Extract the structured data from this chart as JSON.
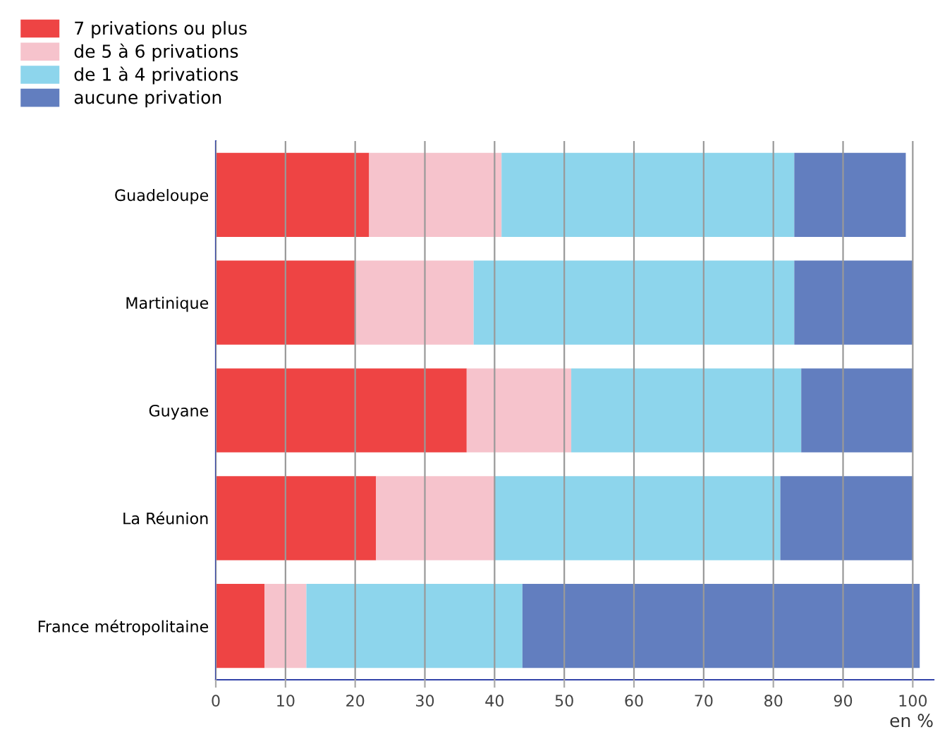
{
  "chart_data": {
    "type": "bar",
    "orientation": "horizontal",
    "stacked": true,
    "xlabel": "en %",
    "categories": [
      "Guadeloupe",
      "Martinique",
      "Guyane",
      "La Réunion",
      "France métropolitaine"
    ],
    "series": [
      {
        "name": "7 privations ou plus",
        "color": "#ee4444",
        "values": [
          22,
          20,
          36,
          23,
          7
        ]
      },
      {
        "name": "de 5 à 6 privations",
        "color": "#f6c3cc",
        "values": [
          19,
          17,
          15,
          17,
          6
        ]
      },
      {
        "name": "de 1 à 4 privations",
        "color": "#8dd5ec",
        "values": [
          42,
          46,
          33,
          41,
          31
        ]
      },
      {
        "name": "aucune privation",
        "color": "#627ebf",
        "values": [
          16,
          17,
          16,
          19,
          57
        ]
      }
    ],
    "xlim": [
      0,
      103
    ],
    "xticks": [
      0,
      10,
      20,
      30,
      40,
      50,
      60,
      70,
      80,
      90,
      100
    ],
    "grid": "x",
    "legend": "top left"
  }
}
